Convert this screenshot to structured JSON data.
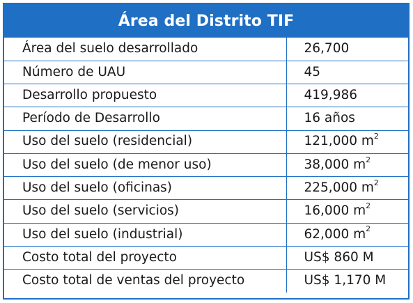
{
  "title": "Área del Distrito TIF",
  "colors": {
    "accent": "#1f6fc4",
    "header_text": "#ffffff",
    "body_text": "#1a1a1a"
  },
  "rows": [
    {
      "label": "Área del suelo desarrollado",
      "value": "26,700",
      "unit": ""
    },
    {
      "label": "Número de UAU",
      "value": "45",
      "unit": ""
    },
    {
      "label": "Desarrollo propuesto",
      "value": "419,986",
      "unit": ""
    },
    {
      "label": "Período de Desarrollo",
      "value": "16 años",
      "unit": ""
    },
    {
      "label": "Uso del suelo (residencial)",
      "value": "121,000 m",
      "unit": "2"
    },
    {
      "label": "Uso del suelo (de menor uso)",
      "value": "38,000 m",
      "unit": "2"
    },
    {
      "label": "Uso del suelo (oficinas)",
      "value": "225,000 m",
      "unit": "2"
    },
    {
      "label": "Uso del suelo (servicios)",
      "value": "16,000 m",
      "unit": "2"
    },
    {
      "label": "Uso del suelo (industrial)",
      "value": "62,000 m",
      "unit": "2"
    },
    {
      "label": "Costo total del proyecto",
      "value": "US$ 860 M",
      "unit": ""
    },
    {
      "label": "Costo total de ventas del proyecto",
      "value": "US$ 1,170 M",
      "unit": ""
    }
  ]
}
